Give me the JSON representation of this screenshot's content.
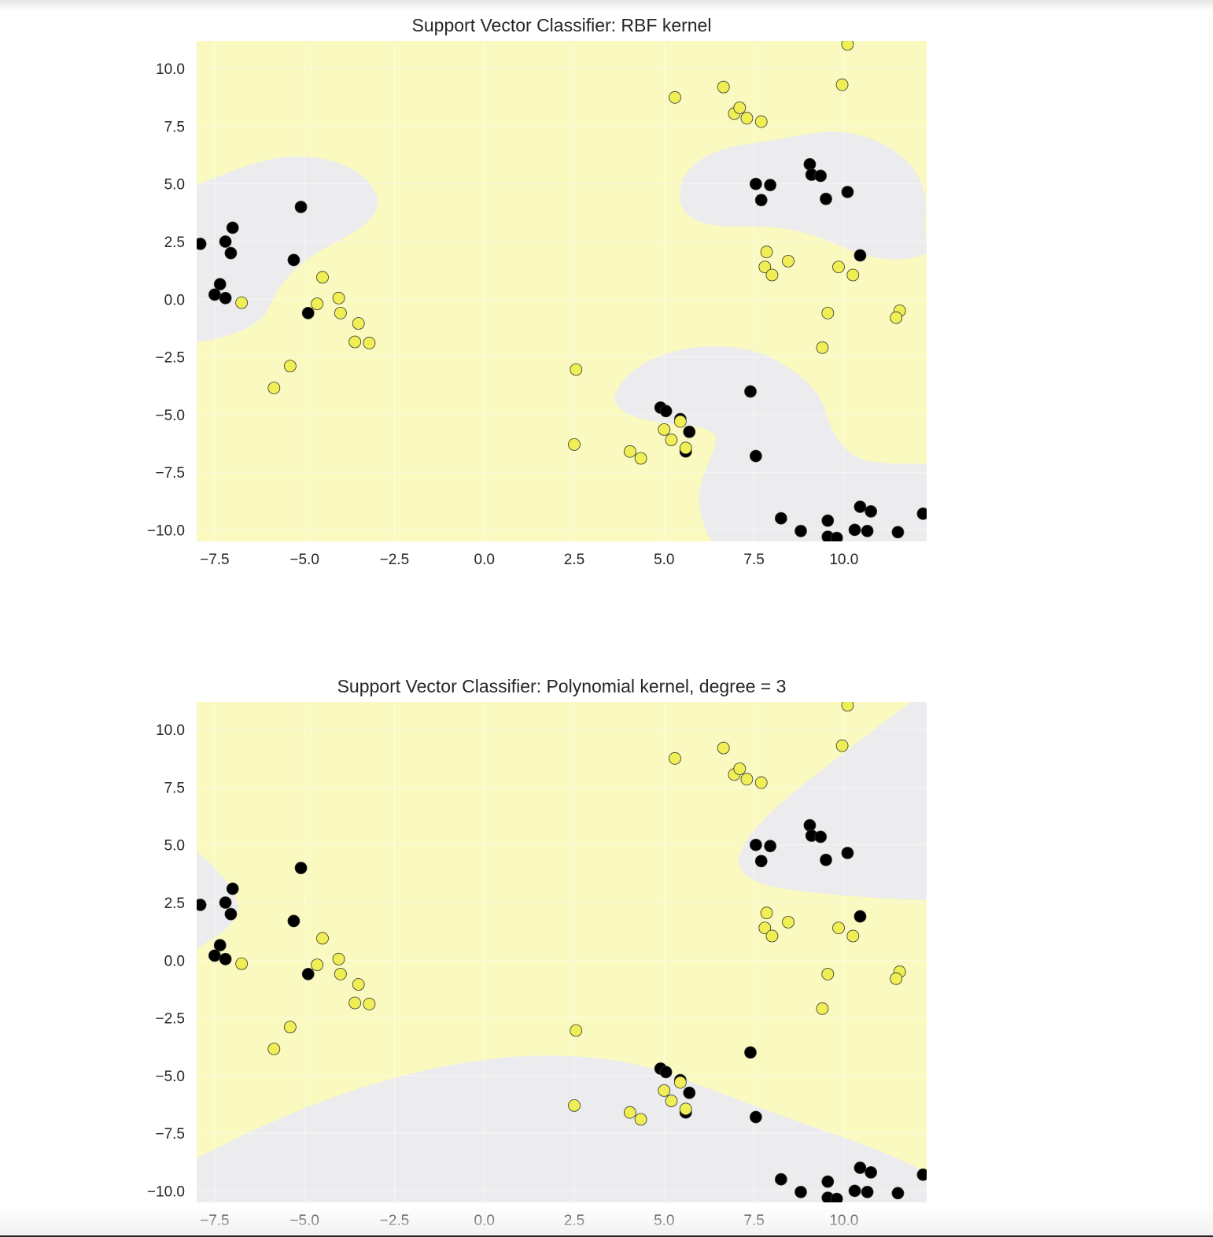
{
  "colors": {
    "class0_fill": "#ececef",
    "class1_fill": "#f9f9c0",
    "class0_point": "#000000",
    "class1_point": "#f0ee55",
    "point_edge": "#333333",
    "grid": "#ffffff"
  },
  "chart_data": [
    {
      "type": "scatter",
      "title": "Support Vector Classifier: RBF kernel",
      "xlabel": "",
      "ylabel": "",
      "xlim": [
        -8.0,
        12.3
      ],
      "ylim": [
        -10.5,
        11.2
      ],
      "xticks": [
        -7.5,
        -5.0,
        -2.5,
        0.0,
        2.5,
        5.0,
        7.5,
        10.0
      ],
      "yticks": [
        -10.0,
        -7.5,
        -5.0,
        -2.5,
        0.0,
        2.5,
        5.0,
        7.5,
        10.0
      ],
      "xtick_labels": [
        "−7.5",
        "−5.0",
        "−2.5",
        "0.0",
        "2.5",
        "5.0",
        "7.5",
        "10.0"
      ],
      "ytick_labels": [
        "−10.0",
        "−7.5",
        "−5.0",
        "−2.5",
        "0.0",
        "2.5",
        "5.0",
        "7.5",
        "10.0"
      ],
      "grid": true,
      "background": "decision regions (light yellow = class 1, light grey = class 0)",
      "series": [
        {
          "class": 0,
          "points": [
            [
              -7.9,
              2.4
            ],
            [
              -7.2,
              2.5
            ],
            [
              -7.0,
              3.1
            ],
            [
              -7.05,
              2.0
            ],
            [
              -7.35,
              0.65
            ],
            [
              -7.5,
              0.2
            ],
            [
              -7.2,
              0.05
            ],
            [
              -5.3,
              1.7
            ],
            [
              -5.1,
              4.0
            ],
            [
              -4.9,
              -0.6
            ],
            [
              4.9,
              -4.7
            ],
            [
              5.05,
              -4.85
            ],
            [
              5.45,
              -5.2
            ],
            [
              5.7,
              -5.75
            ],
            [
              5.6,
              -6.6
            ],
            [
              7.4,
              -4.0
            ],
            [
              7.55,
              -6.8
            ],
            [
              8.25,
              -9.5
            ],
            [
              8.8,
              -10.05
            ],
            [
              9.55,
              -9.6
            ],
            [
              9.55,
              -10.3
            ],
            [
              9.8,
              -10.35
            ],
            [
              10.3,
              -10.0
            ],
            [
              10.65,
              -10.05
            ],
            [
              10.45,
              -9.0
            ],
            [
              10.75,
              -9.2
            ],
            [
              11.5,
              -10.1
            ],
            [
              12.2,
              -9.3
            ],
            [
              7.55,
              5.0
            ],
            [
              7.95,
              4.95
            ],
            [
              7.7,
              4.3
            ],
            [
              9.05,
              5.85
            ],
            [
              9.1,
              5.4
            ],
            [
              9.35,
              5.35
            ],
            [
              9.5,
              4.35
            ],
            [
              10.1,
              4.65
            ],
            [
              10.45,
              1.9
            ]
          ]
        },
        {
          "class": 1,
          "points": [
            [
              -6.75,
              -0.15
            ],
            [
              -4.5,
              0.95
            ],
            [
              -4.65,
              -0.2
            ],
            [
              -4.05,
              0.05
            ],
            [
              -4.0,
              -0.6
            ],
            [
              -3.5,
              -1.05
            ],
            [
              -3.6,
              -1.85
            ],
            [
              -3.2,
              -1.9
            ],
            [
              -5.4,
              -2.9
            ],
            [
              -5.85,
              -3.85
            ],
            [
              2.55,
              -3.05
            ],
            [
              2.5,
              -6.3
            ],
            [
              4.05,
              -6.6
            ],
            [
              4.35,
              -6.9
            ],
            [
              5.0,
              -5.65
            ],
            [
              5.2,
              -6.1
            ],
            [
              5.45,
              -5.3
            ],
            [
              5.6,
              -6.45
            ],
            [
              5.3,
              8.75
            ],
            [
              6.65,
              9.2
            ],
            [
              6.95,
              8.05
            ],
            [
              7.1,
              8.3
            ],
            [
              7.3,
              7.85
            ],
            [
              7.7,
              7.7
            ],
            [
              7.85,
              2.05
            ],
            [
              7.8,
              1.4
            ],
            [
              8.0,
              1.05
            ],
            [
              8.45,
              1.65
            ],
            [
              9.85,
              1.4
            ],
            [
              10.25,
              1.05
            ],
            [
              9.55,
              -0.6
            ],
            [
              9.4,
              -2.1
            ],
            [
              11.55,
              -0.5
            ],
            [
              11.45,
              -0.8
            ],
            [
              9.95,
              9.3
            ],
            [
              10.1,
              11.05
            ]
          ]
        }
      ]
    },
    {
      "type": "scatter",
      "title": "Support Vector Classifier: Polynomial kernel, degree = 3",
      "xlabel": "",
      "ylabel": "",
      "xlim": [
        -8.0,
        12.3
      ],
      "ylim": [
        -10.5,
        11.2
      ],
      "xticks": [
        -7.5,
        -5.0,
        -2.5,
        0.0,
        2.5,
        5.0,
        7.5,
        10.0
      ],
      "yticks": [
        -10.0,
        -7.5,
        -5.0,
        -2.5,
        0.0,
        2.5,
        5.0,
        7.5,
        10.0
      ],
      "xtick_labels": [
        "−7.5",
        "−5.0",
        "−2.5",
        "0.0",
        "2.5",
        "5.0",
        "7.5",
        "10.0"
      ],
      "ytick_labels": [
        "−10.0",
        "−7.5",
        "−5.0",
        "−2.5",
        "0.0",
        "2.5",
        "5.0",
        "7.5",
        "10.0"
      ],
      "grid": true,
      "background": "decision regions (light yellow = class 1, light grey = class 0)",
      "series": [
        {
          "class": 0,
          "points": [
            [
              -7.9,
              2.4
            ],
            [
              -7.2,
              2.5
            ],
            [
              -7.0,
              3.1
            ],
            [
              -7.05,
              2.0
            ],
            [
              -7.35,
              0.65
            ],
            [
              -7.5,
              0.2
            ],
            [
              -7.2,
              0.05
            ],
            [
              -5.3,
              1.7
            ],
            [
              -5.1,
              4.0
            ],
            [
              -4.9,
              -0.6
            ],
            [
              4.9,
              -4.7
            ],
            [
              5.05,
              -4.85
            ],
            [
              5.45,
              -5.2
            ],
            [
              5.7,
              -5.75
            ],
            [
              5.6,
              -6.6
            ],
            [
              7.4,
              -4.0
            ],
            [
              7.55,
              -6.8
            ],
            [
              8.25,
              -9.5
            ],
            [
              8.8,
              -10.05
            ],
            [
              9.55,
              -9.6
            ],
            [
              9.55,
              -10.3
            ],
            [
              9.8,
              -10.35
            ],
            [
              10.3,
              -10.0
            ],
            [
              10.65,
              -10.05
            ],
            [
              10.45,
              -9.0
            ],
            [
              10.75,
              -9.2
            ],
            [
              11.5,
              -10.1
            ],
            [
              12.2,
              -9.3
            ],
            [
              7.55,
              5.0
            ],
            [
              7.95,
              4.95
            ],
            [
              7.7,
              4.3
            ],
            [
              9.05,
              5.85
            ],
            [
              9.1,
              5.4
            ],
            [
              9.35,
              5.35
            ],
            [
              9.5,
              4.35
            ],
            [
              10.1,
              4.65
            ],
            [
              10.45,
              1.9
            ]
          ]
        },
        {
          "class": 1,
          "points": [
            [
              -6.75,
              -0.15
            ],
            [
              -4.5,
              0.95
            ],
            [
              -4.65,
              -0.2
            ],
            [
              -4.05,
              0.05
            ],
            [
              -4.0,
              -0.6
            ],
            [
              -3.5,
              -1.05
            ],
            [
              -3.6,
              -1.85
            ],
            [
              -3.2,
              -1.9
            ],
            [
              -5.4,
              -2.9
            ],
            [
              -5.85,
              -3.85
            ],
            [
              2.55,
              -3.05
            ],
            [
              2.5,
              -6.3
            ],
            [
              4.05,
              -6.6
            ],
            [
              4.35,
              -6.9
            ],
            [
              5.0,
              -5.65
            ],
            [
              5.2,
              -6.1
            ],
            [
              5.45,
              -5.3
            ],
            [
              5.6,
              -6.45
            ],
            [
              5.3,
              8.75
            ],
            [
              6.65,
              9.2
            ],
            [
              6.95,
              8.05
            ],
            [
              7.1,
              8.3
            ],
            [
              7.3,
              7.85
            ],
            [
              7.7,
              7.7
            ],
            [
              7.85,
              2.05
            ],
            [
              7.8,
              1.4
            ],
            [
              8.0,
              1.05
            ],
            [
              8.45,
              1.65
            ],
            [
              9.85,
              1.4
            ],
            [
              10.25,
              1.05
            ],
            [
              9.55,
              -0.6
            ],
            [
              9.4,
              -2.1
            ],
            [
              11.55,
              -0.5
            ],
            [
              11.45,
              -0.8
            ],
            [
              9.95,
              9.3
            ],
            [
              10.1,
              11.05
            ]
          ]
        }
      ]
    }
  ]
}
